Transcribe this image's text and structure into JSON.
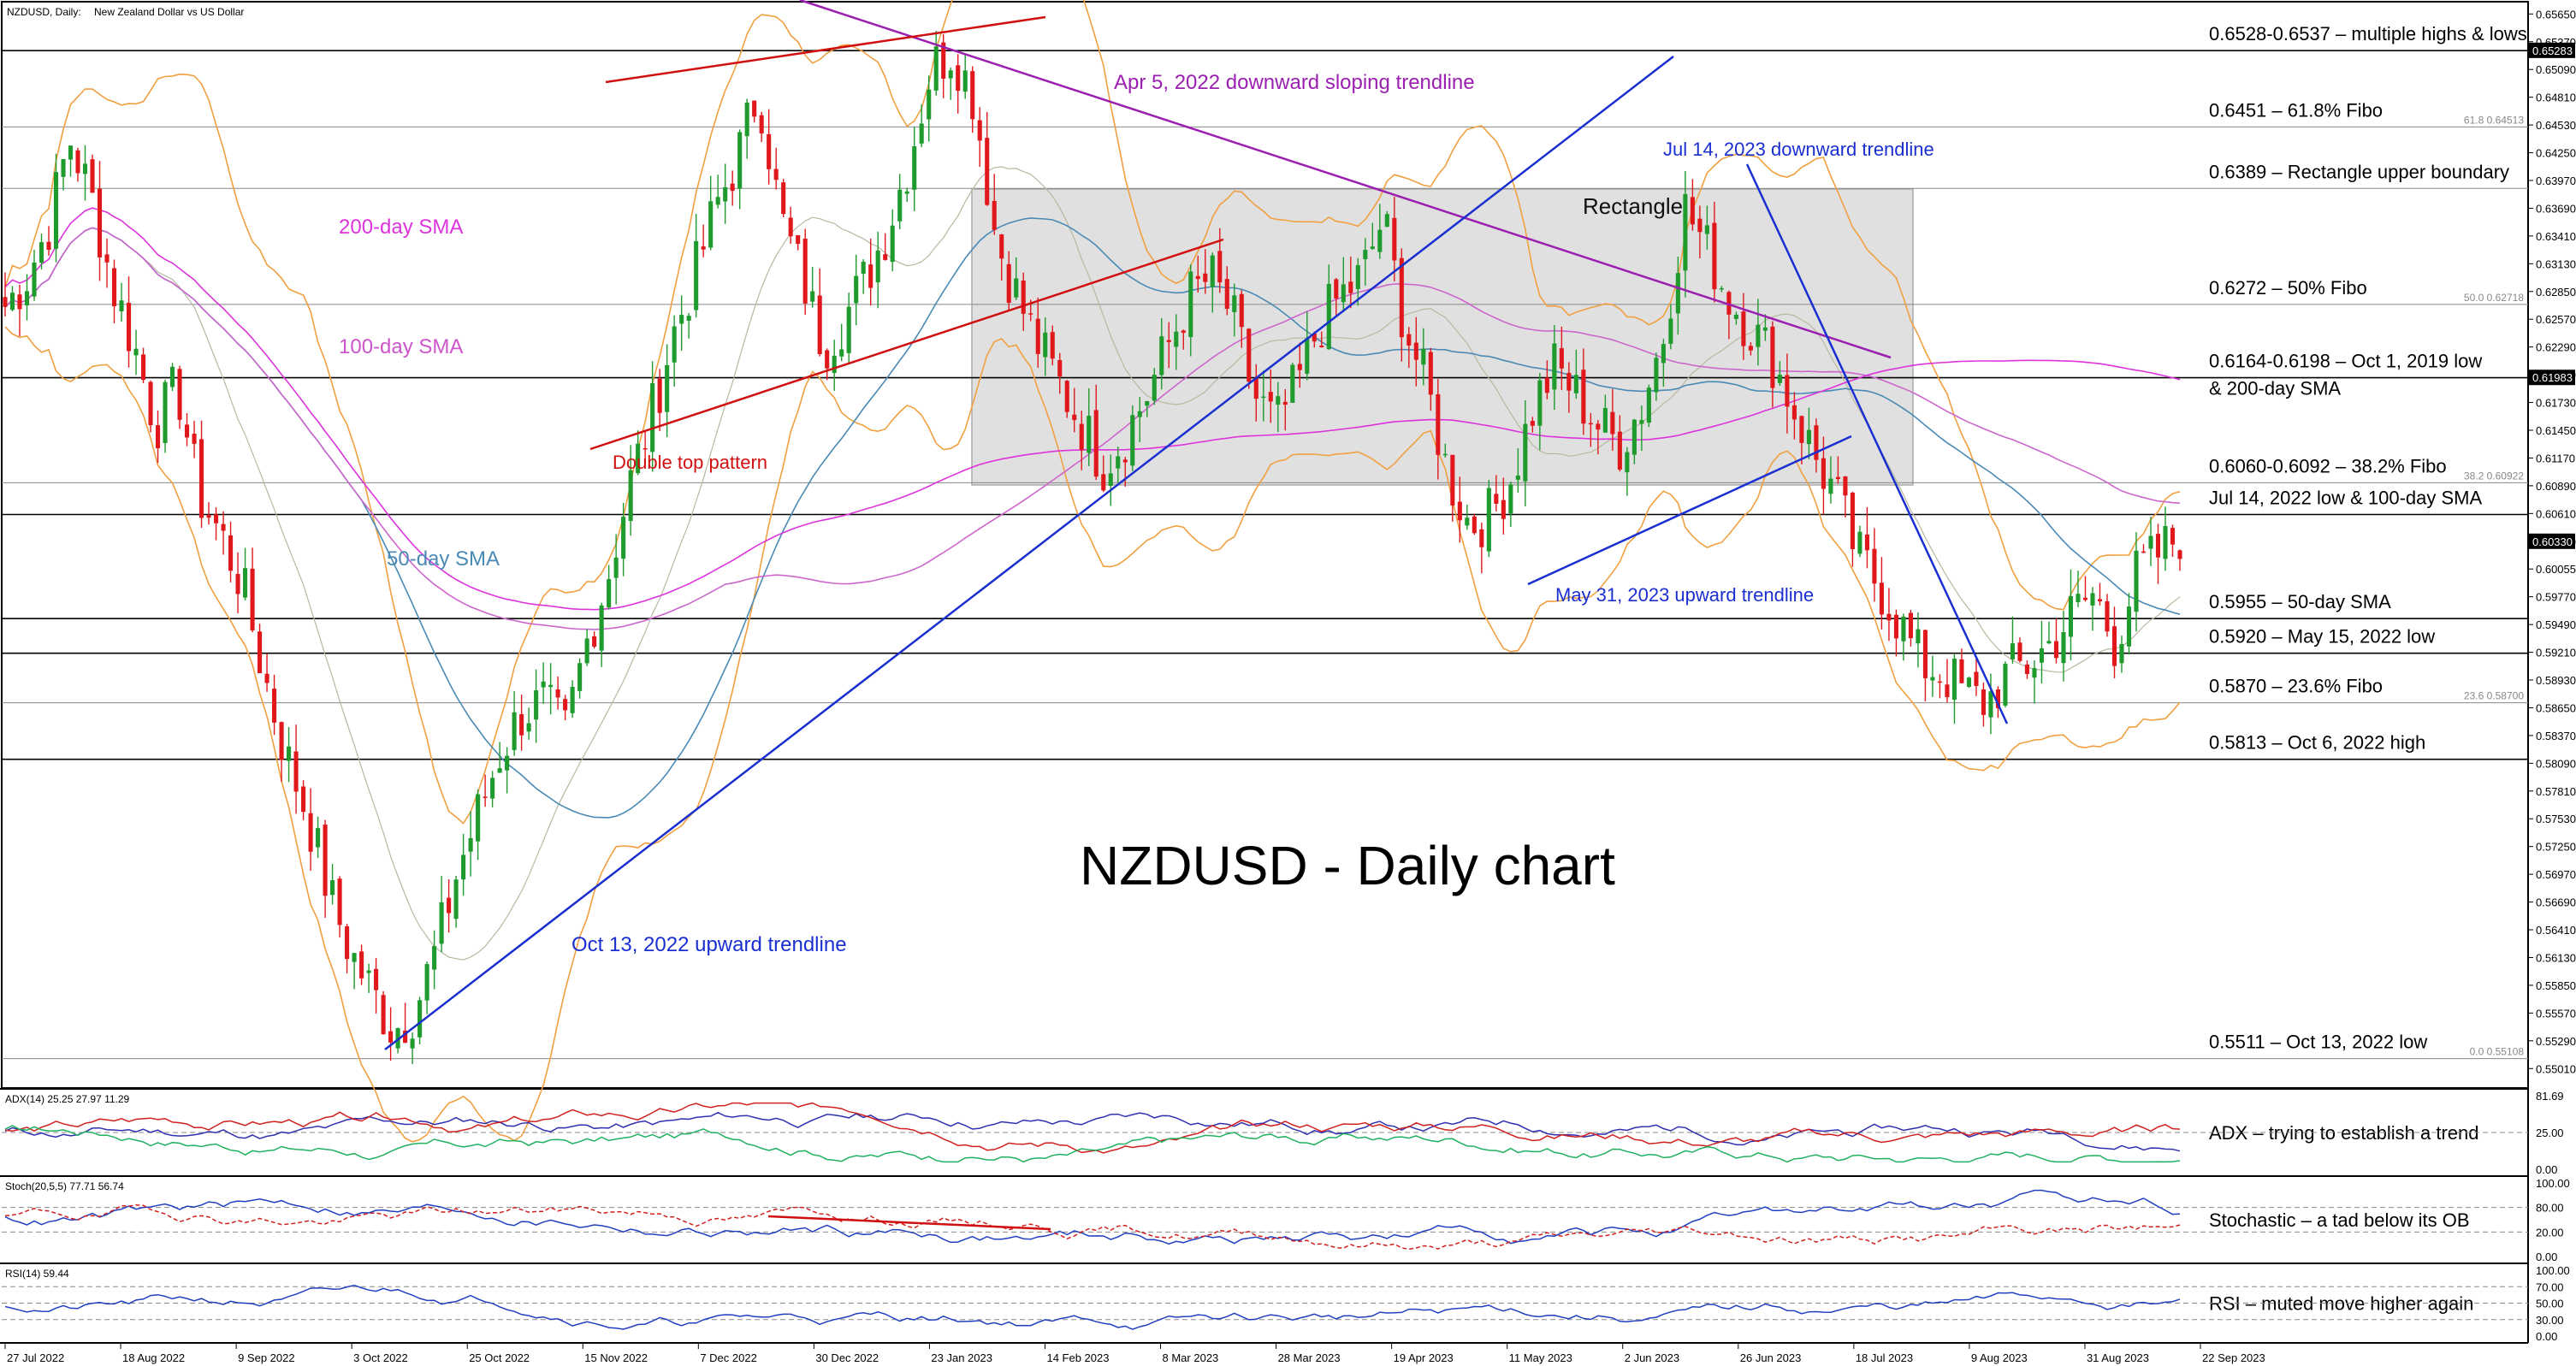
{
  "header": {
    "symbol": "NZDUSD, Daily:",
    "description": "New Zealand Dollar vs US Dollar"
  },
  "chart_data": {
    "type": "candlestick",
    "title": "NZDUSD - Daily chart",
    "ylim": [
      0.549,
      0.6567
    ],
    "y_ticks": [
      "0.65650",
      "0.65370",
      "0.65090",
      "0.64810",
      "0.64530",
      "0.64250",
      "0.63970",
      "0.63690",
      "0.63410",
      "0.63130",
      "0.62850",
      "0.62570",
      "0.62290",
      "0.62010",
      "0.61730",
      "0.61450",
      "0.61170",
      "0.60890",
      "0.60610",
      "0.60330",
      "0.60055",
      "0.59770",
      "0.59490",
      "0.59210",
      "0.58930",
      "0.58650",
      "0.58370",
      "0.58090",
      "0.57810",
      "0.57530",
      "0.57250",
      "0.56970",
      "0.56690",
      "0.56410",
      "0.56130",
      "0.55850",
      "0.55570",
      "0.55290",
      "0.55010"
    ],
    "x_ticks": [
      "27 Jul 2022",
      "18 Aug 2022",
      "9 Sep 2022",
      "3 Oct 2022",
      "25 Oct 2022",
      "15 Nov 2022",
      "7 Dec 2022",
      "30 Dec 2022",
      "23 Jan 2023",
      "14 Feb 2023",
      "8 Mar 2023",
      "28 Mar 2023",
      "19 Apr 2023",
      "11 May 2023",
      "2 Jun 2023",
      "26 Jun 2023",
      "18 Jul 2023",
      "9 Aug 2023",
      "31 Aug 2023",
      "22 Sep 2023"
    ],
    "close_path": [
      0.627,
      0.63,
      0.635,
      0.644,
      0.638,
      0.629,
      0.623,
      0.615,
      0.619,
      0.608,
      0.604,
      0.599,
      0.59,
      0.582,
      0.576,
      0.568,
      0.562,
      0.558,
      0.554,
      0.556,
      0.562,
      0.57,
      0.576,
      0.582,
      0.586,
      0.587,
      0.584,
      0.593,
      0.6,
      0.609,
      0.616,
      0.624,
      0.63,
      0.637,
      0.642,
      0.649,
      0.636,
      0.63,
      0.623,
      0.626,
      0.63,
      0.635,
      0.642,
      0.651,
      0.653,
      0.648,
      0.634,
      0.628,
      0.623,
      0.619,
      0.615,
      0.611,
      0.614,
      0.618,
      0.623,
      0.628,
      0.63,
      0.626,
      0.618,
      0.615,
      0.619,
      0.625,
      0.628,
      0.63,
      0.636,
      0.625,
      0.619,
      0.61,
      0.605,
      0.606,
      0.61,
      0.617,
      0.621,
      0.618,
      0.615,
      0.613,
      0.617,
      0.624,
      0.637,
      0.633,
      0.628,
      0.625,
      0.622,
      0.617,
      0.612,
      0.608,
      0.602,
      0.599,
      0.595,
      0.591,
      0.59,
      0.588,
      0.587,
      0.59,
      0.591,
      0.593,
      0.596,
      0.598,
      0.593,
      0.6,
      0.602,
      0.604
    ],
    "candles": {
      "open": [],
      "high": [],
      "low": [],
      "close": []
    },
    "indicators": [
      {
        "name": "200-day SMA",
        "color": "#dd33dd"
      },
      {
        "name": "100-day SMA",
        "color": "#cc66cc"
      },
      {
        "name": "50-day SMA",
        "color": "#4a8ab5"
      },
      {
        "name": "Bollinger Bands",
        "color": "#f0a040"
      }
    ],
    "levels": [
      {
        "value": 0.6528,
        "label": "0.6528-0.6537 – multiple highs & lows",
        "color": "#000000"
      },
      {
        "value": 0.6451,
        "label": "0.6451 – 61.8% Fibo",
        "color": "#888888",
        "fib": "61.8 0.64513"
      },
      {
        "value": 0.6389,
        "label": "0.6389 – Rectangle upper boundary",
        "color": "#888888"
      },
      {
        "value": 0.6272,
        "label": "0.6272 – 50% Fibo",
        "color": "#888888",
        "fib": "50.0 0.62718"
      },
      {
        "value": 0.6198,
        "label": "0.6164-0.6198 – Oct 1, 2019 low",
        "label2": "& 200-day SMA",
        "color": "#000000"
      },
      {
        "value": 0.6092,
        "label": "0.6060-0.6092 – 38.2% Fibo",
        "color": "#888888",
        "fib": "38.2 0.60922"
      },
      {
        "value": 0.606,
        "label": "Jul 14, 2022 low & 100-day SMA",
        "color": "#000000"
      },
      {
        "value": 0.5955,
        "label": "0.5955 – 50-day SMA",
        "color": "#000000"
      },
      {
        "value": 0.592,
        "label": "0.5920 – May 15, 2022 low",
        "color": "#000000"
      },
      {
        "value": 0.587,
        "label": "0.5870 – 23.6% Fibo",
        "color": "#888888",
        "fib": "23.6 0.58700"
      },
      {
        "value": 0.5813,
        "label": "0.5813 – Oct 6, 2022 high",
        "color": "#000000"
      },
      {
        "value": 0.5511,
        "label": "0.5511 – Oct 13, 2022 low",
        "color": "#888888",
        "fib": "0.0 0.55108"
      }
    ],
    "price_tags": [
      "0.65283",
      "0.61983",
      "0.60330"
    ],
    "annotations": [
      {
        "text": "Apr 5, 2022 downward sloping trendline",
        "color": "#9b1fb0"
      },
      {
        "text": "Jul 14, 2023 downward trendline",
        "color": "#1a2fd0"
      },
      {
        "text": "Rectangle",
        "color": "#111111"
      },
      {
        "text": "200-day SMA",
        "color": "#dd33dd"
      },
      {
        "text": "100-day SMA",
        "color": "#cc55cc"
      },
      {
        "text": "Double top pattern",
        "color": "#d01010"
      },
      {
        "text": "50-day SMA",
        "color": "#4a8ab5"
      },
      {
        "text": "May 31, 2023 upward trendline",
        "color": "#1a2fd0"
      },
      {
        "text": "Oct 13, 2022 upward trendline",
        "color": "#1a2fd0"
      }
    ],
    "panels": [
      {
        "id": "adx",
        "title": "ADX(14) 25.25 27.97 11.29",
        "scale": [
          "81.69",
          "25.00",
          "0.00"
        ],
        "note": "ADX – trying to establish a trend"
      },
      {
        "id": "stoch",
        "title": "Stoch(20,5,5) 77.71 56.74",
        "scale": [
          "100.00",
          "80.00",
          "20.00",
          "0.00"
        ],
        "note": "Stochastic – a tad below its OB"
      },
      {
        "id": "rsi",
        "title": "RSI(14) 59.44",
        "scale": [
          "100.00",
          "70.00",
          "50.00",
          "30.00",
          "0.00"
        ],
        "note": "RSI – muted move higher again"
      }
    ]
  }
}
